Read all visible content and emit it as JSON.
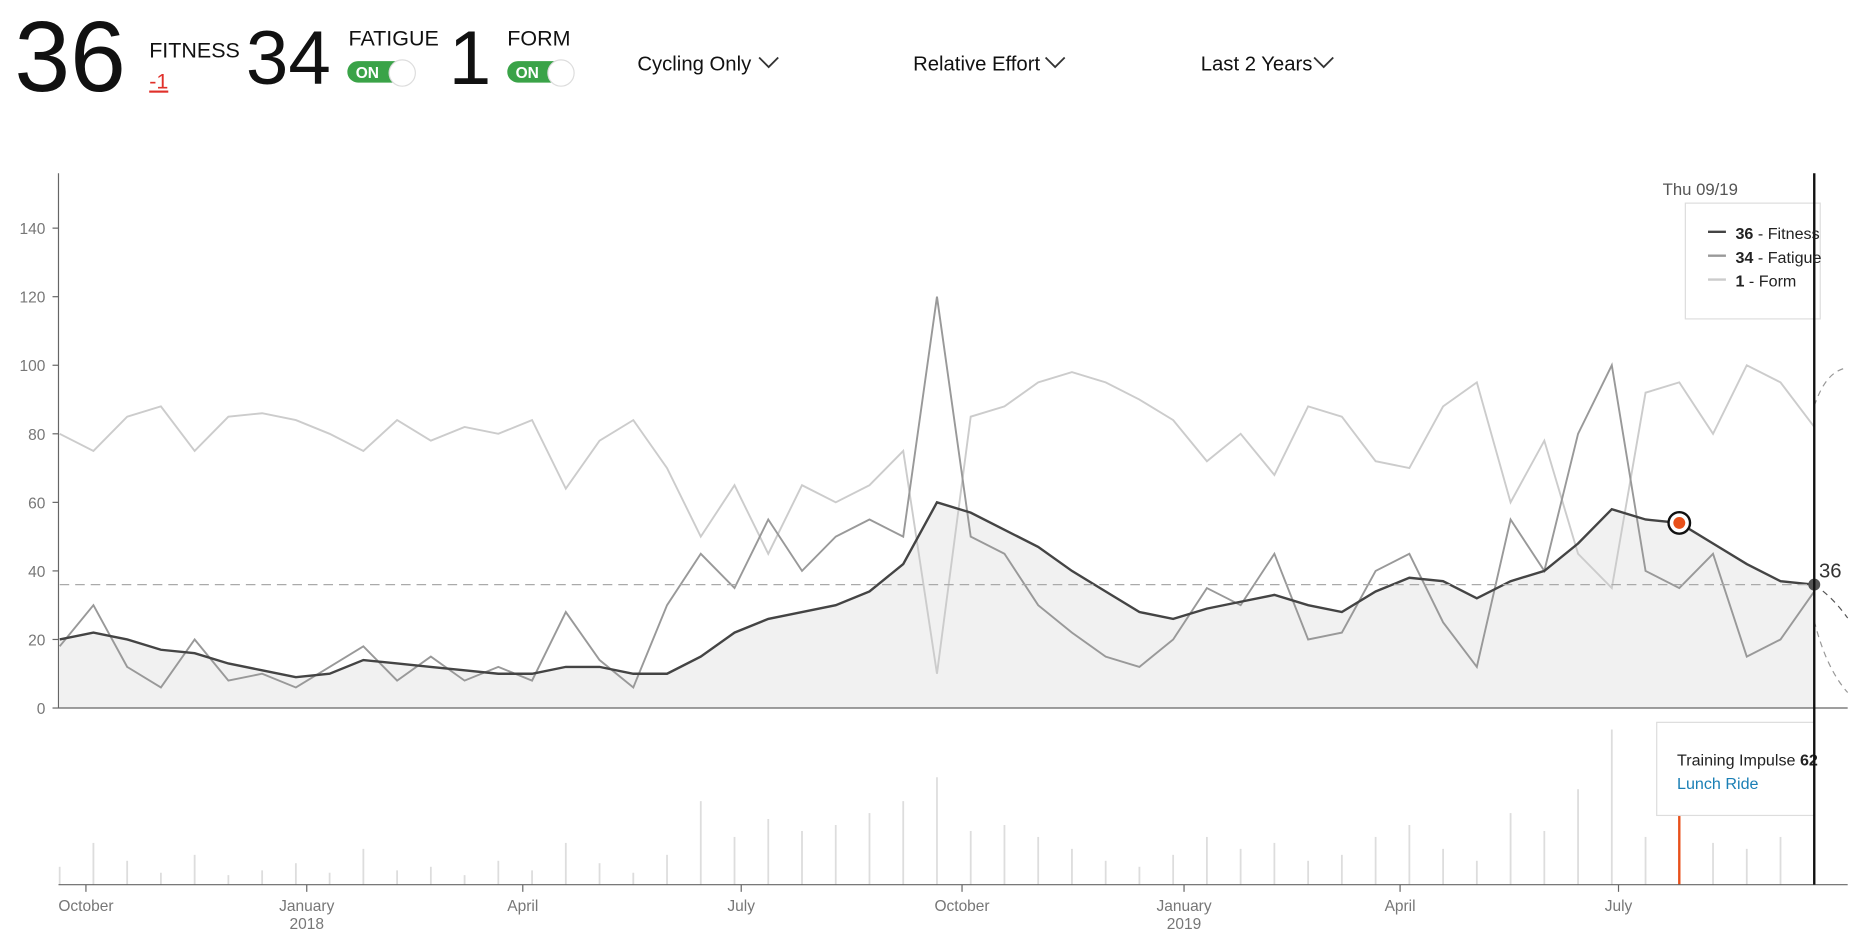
{
  "header": {
    "fitness": {
      "value": 36,
      "label": "FITNESS",
      "change": "-1"
    },
    "fatigue": {
      "value": 34,
      "label": "FATIGUE",
      "toggle": "ON"
    },
    "form": {
      "value": 1,
      "label": "FORM",
      "toggle": "ON"
    },
    "filters": [
      "Cycling Only",
      "Relative Effort",
      "Last 2 Years"
    ]
  },
  "chart_data": {
    "type": "line",
    "date": "Thu 09/19",
    "legend_separator": " - ",
    "ylim": [
      0,
      156
    ],
    "yticks": [
      0,
      20,
      40,
      60,
      80,
      100,
      120,
      140
    ],
    "x_axis_labels": [
      [
        "October"
      ],
      [
        "January",
        "2018"
      ],
      [
        "April"
      ],
      [
        "July"
      ],
      [
        "October"
      ],
      [
        "January",
        "2019"
      ],
      [
        "April"
      ],
      [
        "July"
      ]
    ],
    "series": [
      {
        "name": "Fitness",
        "color": "#444444",
        "values": [
          20,
          22,
          20,
          17,
          16,
          13,
          11,
          9,
          10,
          14,
          13,
          12,
          11,
          10,
          10,
          12,
          12,
          10,
          10,
          15,
          22,
          26,
          28,
          30,
          34,
          42,
          60,
          57,
          52,
          47,
          40,
          34,
          28,
          26,
          29,
          31,
          33,
          30,
          28,
          34,
          38,
          37,
          32,
          37,
          40,
          48,
          58,
          55,
          54,
          48,
          42,
          37,
          36
        ]
      },
      {
        "name": "Fatigue",
        "color": "#999999",
        "values": [
          18,
          30,
          12,
          6,
          20,
          8,
          10,
          6,
          12,
          18,
          8,
          15,
          8,
          12,
          8,
          28,
          14,
          6,
          30,
          45,
          35,
          55,
          40,
          50,
          55,
          50,
          120,
          50,
          45,
          30,
          22,
          15,
          12,
          20,
          35,
          30,
          45,
          20,
          22,
          40,
          45,
          25,
          12,
          55,
          40,
          80,
          100,
          40,
          35,
          45,
          15,
          20,
          34
        ]
      },
      {
        "name": "Form",
        "color": "#cccccc",
        "values": [
          80,
          75,
          85,
          88,
          75,
          85,
          86,
          84,
          80,
          75,
          84,
          78,
          82,
          80,
          84,
          64,
          78,
          84,
          70,
          50,
          65,
          45,
          65,
          60,
          65,
          75,
          10,
          85,
          88,
          95,
          98,
          95,
          90,
          84,
          72,
          80,
          68,
          88,
          85,
          72,
          70,
          88,
          95,
          60,
          78,
          45,
          35,
          92,
          95,
          80,
          100,
          95,
          82
        ]
      }
    ],
    "impulse": {
      "label": "Training Impulse",
      "activity": "Lunch Ride",
      "ylim": [
        0,
        136
      ],
      "values": [
        15,
        35,
        20,
        10,
        25,
        8,
        12,
        18,
        10,
        30,
        12,
        15,
        8,
        20,
        12,
        35,
        18,
        10,
        25,
        70,
        40,
        55,
        45,
        50,
        60,
        70,
        90,
        45,
        50,
        40,
        30,
        20,
        15,
        25,
        40,
        30,
        35,
        20,
        25,
        40,
        50,
        30,
        20,
        60,
        45,
        80,
        130,
        40,
        62,
        35,
        30,
        40,
        50
      ]
    }
  }
}
